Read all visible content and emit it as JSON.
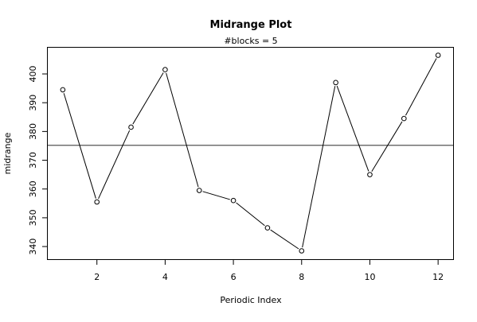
{
  "chart_data": {
    "type": "line",
    "title": "Midrange Plot",
    "subtitle": "#blocks =  5",
    "xlabel": "Periodic Index",
    "ylabel": "midrange",
    "x": [
      1,
      2,
      3,
      4,
      5,
      6,
      7,
      8,
      9,
      10,
      11,
      12
    ],
    "series": [
      {
        "values": [
          394.5,
          355.5,
          381.5,
          401.5,
          359.5,
          356,
          346.5,
          338.5,
          397,
          365,
          384.5,
          406.5
        ]
      }
    ],
    "reference_line": 375.2,
    "xlim": [
      0.56,
      12.44
    ],
    "ylim": [
      335.6,
      409.4
    ],
    "x_ticks": [
      2,
      4,
      6,
      8,
      10,
      12
    ],
    "y_ticks": [
      340,
      350,
      360,
      370,
      380,
      390,
      400
    ],
    "grid": false,
    "legend": "none",
    "colors": {
      "line": "#000000",
      "reference": "#555555"
    }
  }
}
